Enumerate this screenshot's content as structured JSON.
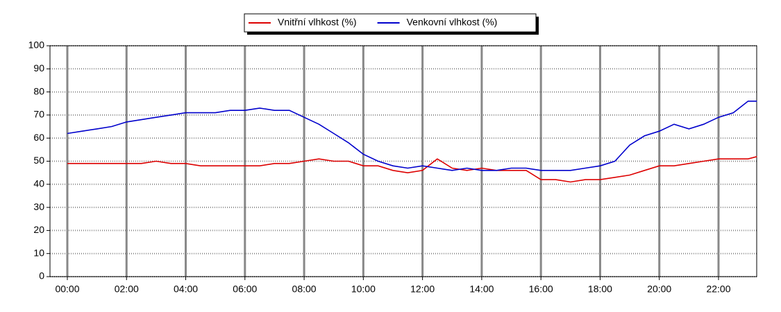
{
  "chart_data": {
    "type": "line",
    "x": [
      0,
      0.5,
      1,
      1.5,
      2,
      2.5,
      3,
      3.5,
      4,
      4.5,
      5,
      5.5,
      6,
      6.5,
      7,
      7.5,
      8,
      8.5,
      9,
      9.5,
      10,
      10.5,
      11,
      11.5,
      12,
      12.5,
      13,
      13.5,
      14,
      14.5,
      15,
      15.5,
      16,
      16.5,
      17,
      17.5,
      18,
      18.5,
      19,
      19.5,
      20,
      20.5,
      21,
      21.5,
      22,
      22.5,
      23,
      23.3
    ],
    "series": [
      {
        "name": "Vnitřní vlhkost (%)",
        "color": "#dd0000",
        "values": [
          49,
          49,
          49,
          49,
          49,
          49,
          50,
          49,
          49,
          48,
          48,
          48,
          48,
          48,
          49,
          49,
          50,
          51,
          50,
          50,
          48,
          48,
          46,
          45,
          46,
          51,
          47,
          46,
          47,
          46,
          46,
          46,
          42,
          42,
          41,
          42,
          42,
          43,
          44,
          46,
          48,
          48,
          49,
          50,
          51,
          51,
          51,
          52
        ]
      },
      {
        "name": "Venkovní vlhkost (%)",
        "color": "#0000cc",
        "values": [
          62,
          63,
          64,
          65,
          67,
          68,
          69,
          70,
          71,
          71,
          71,
          72,
          72,
          73,
          72,
          72,
          69,
          66,
          62,
          58,
          53,
          50,
          48,
          47,
          48,
          47,
          46,
          47,
          46,
          46,
          47,
          47,
          46,
          46,
          46,
          47,
          48,
          50,
          57,
          61,
          63,
          66,
          64,
          66,
          69,
          71,
          76,
          76
        ]
      }
    ],
    "xlim": [
      -0.586,
      23.29
    ],
    "xticks": [
      {
        "value": 0,
        "label": "00:00"
      },
      {
        "value": 2,
        "label": "02:00"
      },
      {
        "value": 4,
        "label": "04:00"
      },
      {
        "value": 6,
        "label": "06:00"
      },
      {
        "value": 8,
        "label": "08:00"
      },
      {
        "value": 10,
        "label": "10:00"
      },
      {
        "value": 12,
        "label": "12:00"
      },
      {
        "value": 14,
        "label": "14:00"
      },
      {
        "value": 16,
        "label": "16:00"
      },
      {
        "value": 18,
        "label": "18:00"
      },
      {
        "value": 20,
        "label": "20:00"
      },
      {
        "value": 22,
        "label": "22:00"
      }
    ],
    "ylim": [
      0,
      100
    ],
    "yticks": [
      0,
      10,
      20,
      30,
      40,
      50,
      60,
      70,
      80,
      90,
      100
    ],
    "grid": true,
    "legend": "top"
  }
}
